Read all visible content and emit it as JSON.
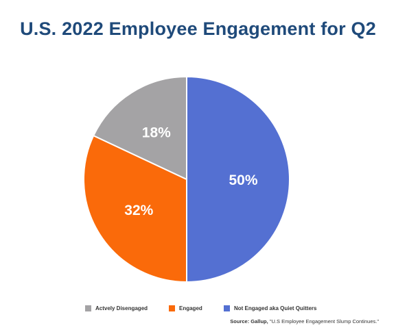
{
  "chart_data": {
    "type": "pie",
    "title": "U.S. 2022 Employee Engagement for Q2",
    "slices": [
      {
        "name": "Not Engaged aka Quiet Quitters",
        "value": 50,
        "label": "50%",
        "color": "#5470d2"
      },
      {
        "name": "Engaged",
        "value": 32,
        "label": "32%",
        "color": "#fa6a0a"
      },
      {
        "name": "Actvely Disengaged",
        "value": 18,
        "label": "18%",
        "color": "#a4a3a5"
      }
    ],
    "legend_order": [
      2,
      1,
      0
    ],
    "legend_position": "bottom",
    "start_angle_deg": 0,
    "direction": "clockwise",
    "label_color": "#ffffff"
  },
  "source": {
    "label": "Source: Gallup,",
    "text": "\"U.S Employee Engagement Slump Continues.\""
  },
  "colors": {
    "title": "#1f4a7a",
    "text": "#333333"
  }
}
